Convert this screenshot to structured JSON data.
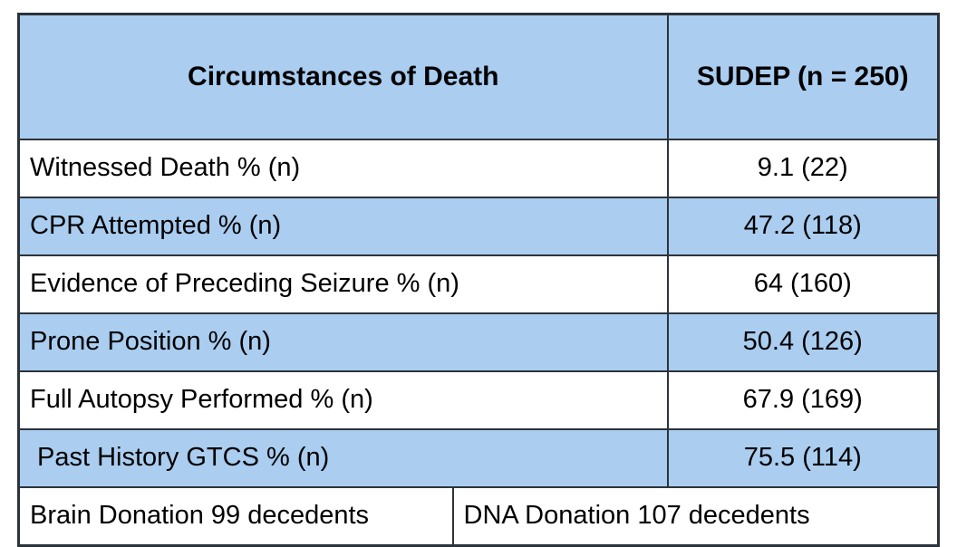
{
  "colors": {
    "row_blue": "#aacdf0",
    "row_white": "#ffffff",
    "border": "#2d333b",
    "text": "#000000"
  },
  "chart_data": {
    "type": "table",
    "title": "Circumstances of Death",
    "header": {
      "col1": "Circumstances of Death",
      "col2": "SUDEP (n = 250)"
    },
    "rows": [
      {
        "label": "Witnessed Death % (n)",
        "value": "9.1 (22)",
        "percent": 9.1,
        "n": 22,
        "shade": "white"
      },
      {
        "label": "CPR Attempted % (n)",
        "value": "47.2 (118)",
        "percent": 47.2,
        "n": 118,
        "shade": "blue"
      },
      {
        "label": "Evidence of Preceding Seizure % (n)",
        "value": "64 (160)",
        "percent": 64,
        "n": 160,
        "shade": "white"
      },
      {
        "label": "Prone Position % (n)",
        "value": "50.4 (126)",
        "percent": 50.4,
        "n": 126,
        "shade": "blue"
      },
      {
        "label": "Full Autopsy Performed % (n)",
        "value": "67.9 (169)",
        "percent": 67.9,
        "n": 169,
        "shade": "white"
      },
      {
        "label": "Past History GTCS % (n)",
        "value": "75.5 (114)",
        "percent": 75.5,
        "n": 114,
        "shade": "blue"
      }
    ],
    "footer": {
      "left": "Brain Donation 99 decedents",
      "right": "DNA Donation 107 decedents",
      "brain_donation_n": 99,
      "dna_donation_n": 107
    },
    "cohort_n": 250
  }
}
